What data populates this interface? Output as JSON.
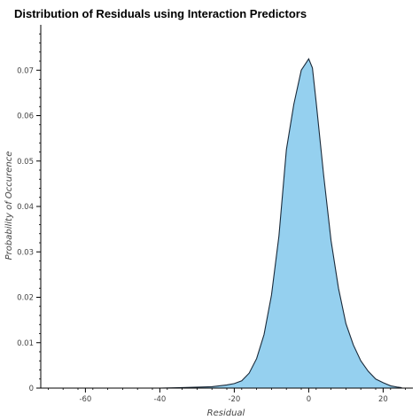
{
  "chart_data": {
    "type": "area",
    "title": "Distribution of Residuals using Interaction Predictors",
    "xlabel": "Residual",
    "ylabel": "Probability of Occurence",
    "xlim": [
      -72,
      28
    ],
    "ylim": [
      0,
      0.08
    ],
    "x_ticks": [
      -60,
      -40,
      -20,
      0,
      20
    ],
    "y_ticks": [
      0,
      0.01,
      0.02,
      0.03,
      0.04,
      0.05,
      0.06,
      0.07
    ],
    "y_tick_labels": [
      "0",
      "0.01",
      "0.02",
      "0.03",
      "0.04",
      "0.05",
      "0.06",
      "0.07"
    ],
    "x_tick_labels": [
      "-60",
      "-40",
      "-20",
      "0",
      "20"
    ],
    "grid": false,
    "fill_color": "#95d0ef",
    "line_color": "#1a2a3a",
    "series": [
      {
        "x": [
          -72,
          -60,
          -50,
          -40,
          -35,
          -30,
          -26,
          -24,
          -22,
          -20,
          -18,
          -16,
          -14,
          -12,
          -10,
          -8,
          -6,
          -4,
          -2,
          0,
          1,
          2,
          4,
          6,
          8,
          10,
          12,
          14,
          16,
          18,
          20,
          22,
          24,
          25
        ],
        "values": [
          0,
          0,
          0,
          0,
          0.0001,
          0.0002,
          0.0003,
          0.0005,
          0.0007,
          0.001,
          0.0016,
          0.0033,
          0.0065,
          0.0118,
          0.0205,
          0.0335,
          0.0525,
          0.0625,
          0.07,
          0.0725,
          0.0705,
          0.063,
          0.047,
          0.0325,
          0.022,
          0.0142,
          0.0095,
          0.006,
          0.0037,
          0.002,
          0.0012,
          0.0005,
          0.0002,
          0.0001
        ]
      }
    ]
  }
}
